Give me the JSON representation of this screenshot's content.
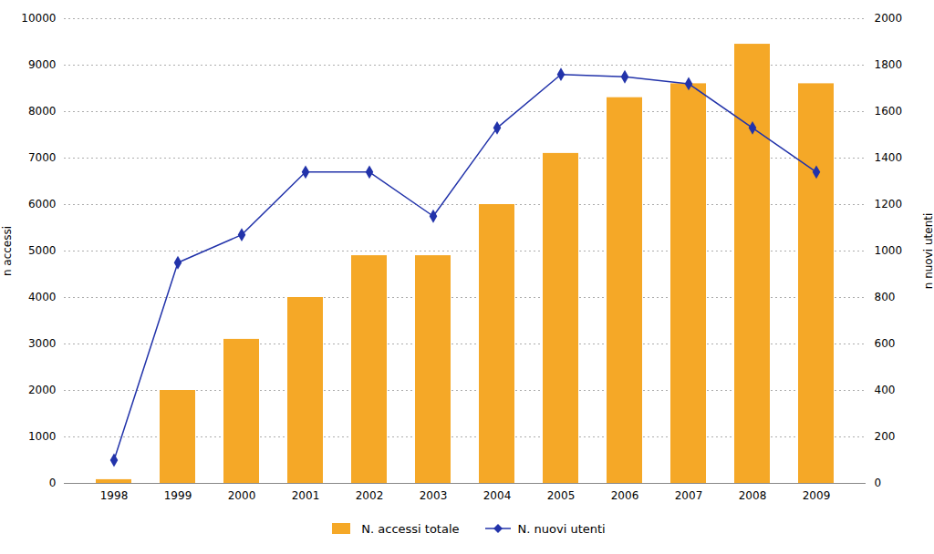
{
  "chart_data": {
    "type": "bar",
    "categories": [
      "1998",
      "1999",
      "2000",
      "2001",
      "2002",
      "2003",
      "2004",
      "2005",
      "2006",
      "2007",
      "2008",
      "2009"
    ],
    "series": [
      {
        "name": "N. accessi totale",
        "type": "bar",
        "color": "#f5a827",
        "values": [
          80,
          2000,
          3100,
          4000,
          4900,
          4900,
          6000,
          7100,
          8300,
          8600,
          9450,
          8600
        ]
      },
      {
        "name": "N. nuovi utenti",
        "type": "line",
        "axis": "y2",
        "color": "#2233aa",
        "marker": "diamond",
        "values": [
          100,
          950,
          1070,
          1340,
          1340,
          1150,
          1530,
          1760,
          1750,
          1720,
          1530,
          1340
        ]
      }
    ],
    "ylabel": "n accessi",
    "y2label": "n nuovi utenti",
    "ylim": [
      0,
      10000
    ],
    "yticks": [
      0,
      1000,
      2000,
      3000,
      4000,
      5000,
      6000,
      7000,
      8000,
      9000,
      10000
    ],
    "y2lim": [
      0,
      2000
    ],
    "y2ticks": [
      0,
      200,
      400,
      600,
      800,
      1000,
      1200,
      1400,
      1600,
      1800,
      2000
    ],
    "grid": true,
    "legend": "bottom"
  }
}
